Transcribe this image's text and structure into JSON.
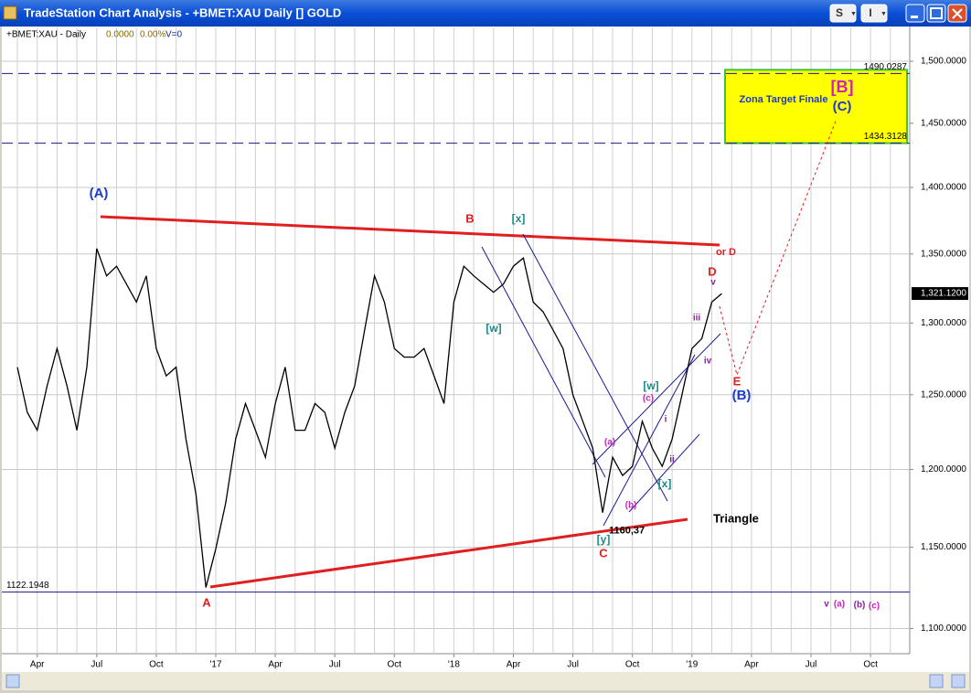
{
  "window": {
    "title": "TradeStation Chart Analysis - +BMET:XAU Daily [] GOLD",
    "buttons": [
      "S",
      "I"
    ]
  },
  "chart_data": {
    "type": "line",
    "symbol": "+BMET:XAU - Daily",
    "net_change": "0.0000",
    "pct_change": "0.00%",
    "volume": "V=0",
    "log_scale": true,
    "grid": true,
    "color": "#000000",
    "categories": [
      null,
      null,
      "Apr",
      null,
      null,
      null,
      null,
      null,
      "Jul",
      null,
      null,
      null,
      null,
      null,
      "Oct",
      null,
      null,
      null,
      null,
      null,
      "'17",
      null,
      null,
      null,
      null,
      null,
      "Apr",
      null,
      null,
      null,
      null,
      null,
      "Jul",
      null,
      null,
      null,
      null,
      null,
      "Oct",
      null,
      null,
      null,
      null,
      null,
      "'18",
      null,
      null,
      null,
      null,
      null,
      "Apr",
      null,
      null,
      null,
      null,
      null,
      "Jul",
      null,
      null,
      null,
      null,
      null,
      "Oct",
      null,
      null,
      null,
      null,
      null,
      "'19",
      null,
      null,
      null,
      null,
      null,
      "Apr",
      null,
      null,
      null,
      null,
      null,
      "Jul",
      null,
      null,
      null,
      null,
      null,
      "Oct",
      null,
      null,
      null
    ],
    "values": [
      1269,
      1238,
      1226,
      1256,
      1282,
      1256,
      1226,
      1269,
      1354,
      1334,
      1341,
      1328,
      1315,
      1334,
      1282,
      1263,
      1269,
      1220,
      1184,
      1125,
      1149,
      1178,
      1220,
      1244,
      1226,
      1208,
      1244,
      1269,
      1226,
      1226,
      1244,
      1238,
      1214,
      1238,
      1256,
      1295,
      1334,
      1315,
      1282,
      1276,
      1276,
      1282,
      1263,
      1244,
      1315,
      1341,
      1334,
      1328,
      1322,
      1328,
      1341,
      1347,
      1315,
      1308,
      1295,
      1282,
      1250,
      1232,
      1214,
      1172,
      1208,
      1196,
      1202,
      1232,
      1214,
      1202,
      1220,
      1250,
      1282,
      1289,
      1315,
      1321.12,
      null,
      null,
      null,
      null,
      null,
      null,
      null,
      null,
      null,
      null,
      null,
      null,
      null,
      null,
      null,
      null,
      null,
      null
    ],
    "ylim": [
      1085,
      1528
    ],
    "yticks": [
      {
        "value": 1100,
        "label": "1,100.0000"
      },
      {
        "value": 1150,
        "label": "1,150.0000"
      },
      {
        "value": 1200,
        "label": "1,200.0000"
      },
      {
        "value": 1250,
        "label": "1,250.0000"
      },
      {
        "value": 1300,
        "label": "1,300.0000"
      },
      {
        "value": 1350,
        "label": "1,350.0000"
      },
      {
        "value": 1400,
        "label": "1,400.0000"
      },
      {
        "value": 1450,
        "label": "1,450.0000"
      },
      {
        "value": 1500,
        "label": "1,500.0000"
      }
    ],
    "levels": [
      1490.0287,
      1434.3128,
      1122.1948
    ],
    "last_price": {
      "value": 1321.12,
      "label": "1,321.1200"
    },
    "low_label": {
      "value": 1160.37,
      "label": "1160,37"
    },
    "annotations": [
      "(A)",
      "A",
      "B",
      "[x]",
      "[w]",
      "C",
      "[y]",
      "(a)",
      "(b)",
      "(c)",
      "[w]",
      "[x]",
      "i",
      "ii",
      "iii",
      "iv",
      "v",
      "D",
      "or D",
      "E",
      "(B)",
      "[B]",
      "(C)",
      "Zona Target Finale",
      "Triangle",
      "v",
      "(a)",
      "(b)",
      "(c)"
    ]
  }
}
